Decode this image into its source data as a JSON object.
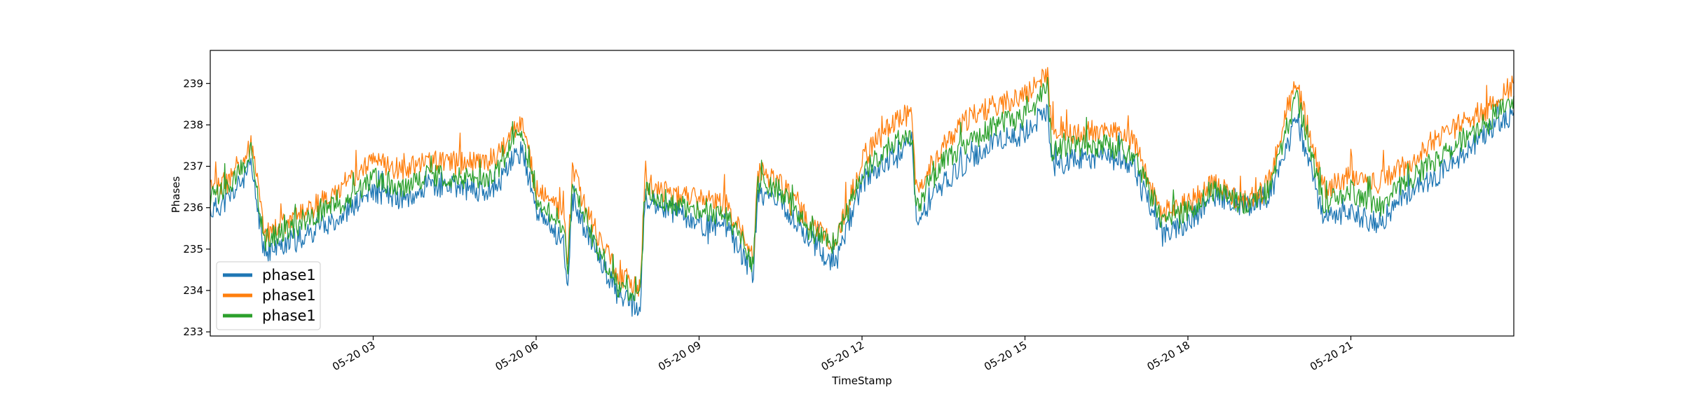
{
  "chart_data": {
    "type": "line",
    "title": "",
    "xlabel": "TimeStamp",
    "ylabel": "Phases",
    "xlim": [
      "2020-05-20T00:00",
      "2020-05-21T00:00"
    ],
    "ylim": [
      232.9,
      239.8
    ],
    "x_ticks": [
      "2020-05-20T03:00",
      "2020-05-20T06:00",
      "2020-05-20T09:00",
      "2020-05-20T12:00",
      "2020-05-20T15:00",
      "2020-05-20T18:00",
      "2020-05-20T21:00"
    ],
    "x_tick_labels": [
      "05-20 03",
      "05-20 06",
      "05-20 09",
      "05-20 12",
      "05-20 15",
      "05-20 18",
      "05-20 21"
    ],
    "y_ticks": [
      233,
      234,
      235,
      236,
      237,
      238,
      239
    ],
    "y_tick_labels": [
      "233",
      "234",
      "235",
      "236",
      "237",
      "238",
      "239"
    ],
    "grid": false,
    "legend_position": "lower-left",
    "x": [
      "2020-05-20T00:00",
      "2020-05-20T00:20",
      "2020-05-20T00:40",
      "2020-05-20T00:45",
      "2020-05-20T01:00",
      "2020-05-20T01:30",
      "2020-05-20T02:00",
      "2020-05-20T02:30",
      "2020-05-20T03:00",
      "2020-05-20T03:30",
      "2020-05-20T04:00",
      "2020-05-20T04:30",
      "2020-05-20T05:00",
      "2020-05-20T05:20",
      "2020-05-20T05:30",
      "2020-05-20T05:45",
      "2020-05-20T06:00",
      "2020-05-20T06:30",
      "2020-05-20T06:35",
      "2020-05-20T06:40",
      "2020-05-20T07:00",
      "2020-05-20T07:30",
      "2020-05-20T07:55",
      "2020-05-20T08:00",
      "2020-05-20T08:30",
      "2020-05-20T09:00",
      "2020-05-20T09:30",
      "2020-05-20T10:00",
      "2020-05-20T10:05",
      "2020-05-20T10:30",
      "2020-05-20T11:00",
      "2020-05-20T11:30",
      "2020-05-20T12:00",
      "2020-05-20T12:30",
      "2020-05-20T12:55",
      "2020-05-20T13:00",
      "2020-05-20T13:30",
      "2020-05-20T14:00",
      "2020-05-20T14:30",
      "2020-05-20T15:00",
      "2020-05-20T15:25",
      "2020-05-20T15:30",
      "2020-05-20T16:00",
      "2020-05-20T16:30",
      "2020-05-20T17:00",
      "2020-05-20T17:30",
      "2020-05-20T18:00",
      "2020-05-20T18:30",
      "2020-05-20T19:00",
      "2020-05-20T19:30",
      "2020-05-20T19:50",
      "2020-05-20T20:00",
      "2020-05-20T20:30",
      "2020-05-20T21:00",
      "2020-05-20T21:30",
      "2020-05-20T22:00",
      "2020-05-20T22:30",
      "2020-05-20T23:00",
      "2020-05-20T23:30",
      "2020-05-21T00:00"
    ],
    "series": [
      {
        "name": "phase1",
        "color": "#1f77b4",
        "values": [
          235.9,
          236.2,
          236.8,
          237.0,
          234.9,
          235.2,
          235.5,
          235.9,
          236.4,
          236.2,
          236.5,
          236.5,
          236.4,
          236.6,
          237.0,
          237.4,
          235.9,
          235.2,
          234.2,
          236.2,
          235.2,
          233.9,
          233.5,
          236.2,
          235.9,
          235.6,
          235.5,
          234.4,
          236.4,
          236.1,
          235.3,
          234.6,
          236.6,
          237.2,
          237.6,
          235.6,
          236.6,
          237.2,
          237.6,
          237.8,
          238.4,
          237.0,
          237.2,
          237.2,
          237.0,
          235.4,
          235.6,
          236.3,
          236.0,
          236.3,
          237.5,
          238.2,
          235.7,
          235.9,
          235.6,
          236.3,
          236.7,
          237.2,
          237.8,
          238.3
        ]
      },
      {
        "name": "phase1",
        "color": "#ff7f0e",
        "values": [
          236.4,
          236.7,
          237.3,
          237.6,
          235.4,
          235.7,
          236.1,
          236.5,
          237.2,
          236.9,
          237.1,
          237.1,
          237.1,
          237.3,
          237.8,
          238.1,
          236.4,
          235.9,
          234.7,
          236.9,
          235.7,
          234.4,
          234.1,
          236.6,
          236.3,
          236.2,
          236.1,
          234.8,
          236.9,
          236.6,
          235.7,
          235.1,
          237.1,
          238.0,
          238.3,
          236.4,
          237.5,
          238.2,
          238.5,
          238.7,
          239.2,
          237.9,
          237.8,
          237.9,
          237.6,
          235.9,
          236.1,
          236.6,
          236.1,
          236.6,
          238.4,
          239.0,
          236.4,
          236.8,
          236.6,
          237.0,
          237.6,
          238.0,
          238.4,
          239.0
        ]
      },
      {
        "name": "phase1",
        "color": "#2ca02c",
        "values": [
          236.2,
          236.5,
          237.1,
          237.3,
          235.2,
          235.5,
          235.9,
          236.1,
          236.7,
          236.5,
          236.8,
          236.7,
          236.7,
          236.9,
          237.4,
          237.8,
          236.2,
          235.6,
          234.4,
          236.6,
          235.4,
          234.1,
          233.9,
          236.4,
          236.1,
          235.9,
          235.8,
          234.6,
          236.6,
          236.4,
          235.5,
          235.1,
          236.8,
          237.5,
          237.8,
          236.0,
          237.1,
          237.6,
          238.0,
          238.2,
          238.9,
          237.4,
          237.5,
          237.5,
          237.3,
          235.7,
          235.9,
          236.4,
          236.1,
          236.4,
          237.9,
          238.7,
          236.1,
          236.4,
          236.0,
          236.6,
          237.1,
          237.6,
          238.0,
          238.7
        ]
      }
    ]
  }
}
